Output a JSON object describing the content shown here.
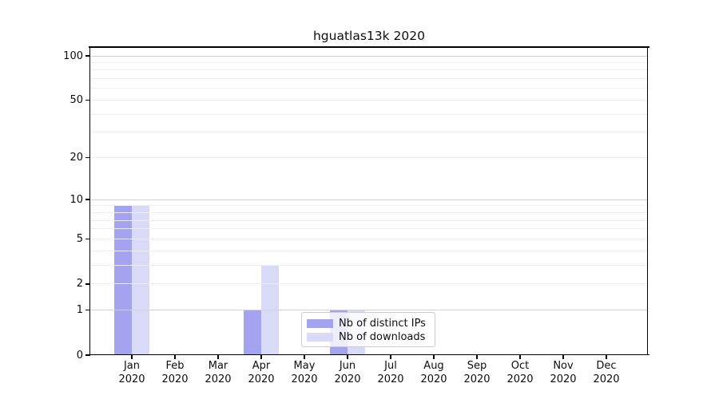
{
  "chart_data": {
    "type": "bar",
    "title": "hguatlas13k 2020",
    "categories": [
      "Jan 2020",
      "Feb 2020",
      "Mar 2020",
      "Apr 2020",
      "May 2020",
      "Jun 2020",
      "Jul 2020",
      "Aug 2020",
      "Sep 2020",
      "Oct 2020",
      "Nov 2020",
      "Dec 2020"
    ],
    "category_lines": [
      [
        "Jan",
        "2020"
      ],
      [
        "Feb",
        "2020"
      ],
      [
        "Mar",
        "2020"
      ],
      [
        "Apr",
        "2020"
      ],
      [
        "May",
        "2020"
      ],
      [
        "Jun",
        "2020"
      ],
      [
        "Jul",
        "2020"
      ],
      [
        "Aug",
        "2020"
      ],
      [
        "Sep",
        "2020"
      ],
      [
        "Oct",
        "2020"
      ],
      [
        "Nov",
        "2020"
      ],
      [
        "Dec",
        "2020"
      ]
    ],
    "series": [
      {
        "name": "Nb of distinct IPs",
        "color": "#a3a3f0",
        "values": [
          9,
          0,
          0,
          1,
          0,
          1,
          0,
          0,
          0,
          0,
          0,
          0
        ]
      },
      {
        "name": "Nb of downloads",
        "color": "#d9d9f8",
        "values": [
          9,
          0,
          0,
          3,
          0,
          1,
          0,
          0,
          0,
          0,
          0,
          0
        ]
      }
    ],
    "xlabel": "",
    "ylabel": "",
    "yscale": "log1p",
    "ylim": [
      0,
      100
    ],
    "yticks": [
      100,
      50,
      20,
      10,
      5,
      2,
      1,
      0
    ],
    "grid": "both",
    "legend_position": "lower center-right inside plot"
  },
  "colors": {
    "grid_major": "#d2d2d2",
    "grid_minor": "#eeeeee",
    "axis": "#000000",
    "legend_border": "#cccccc",
    "background": "#ffffff"
  }
}
